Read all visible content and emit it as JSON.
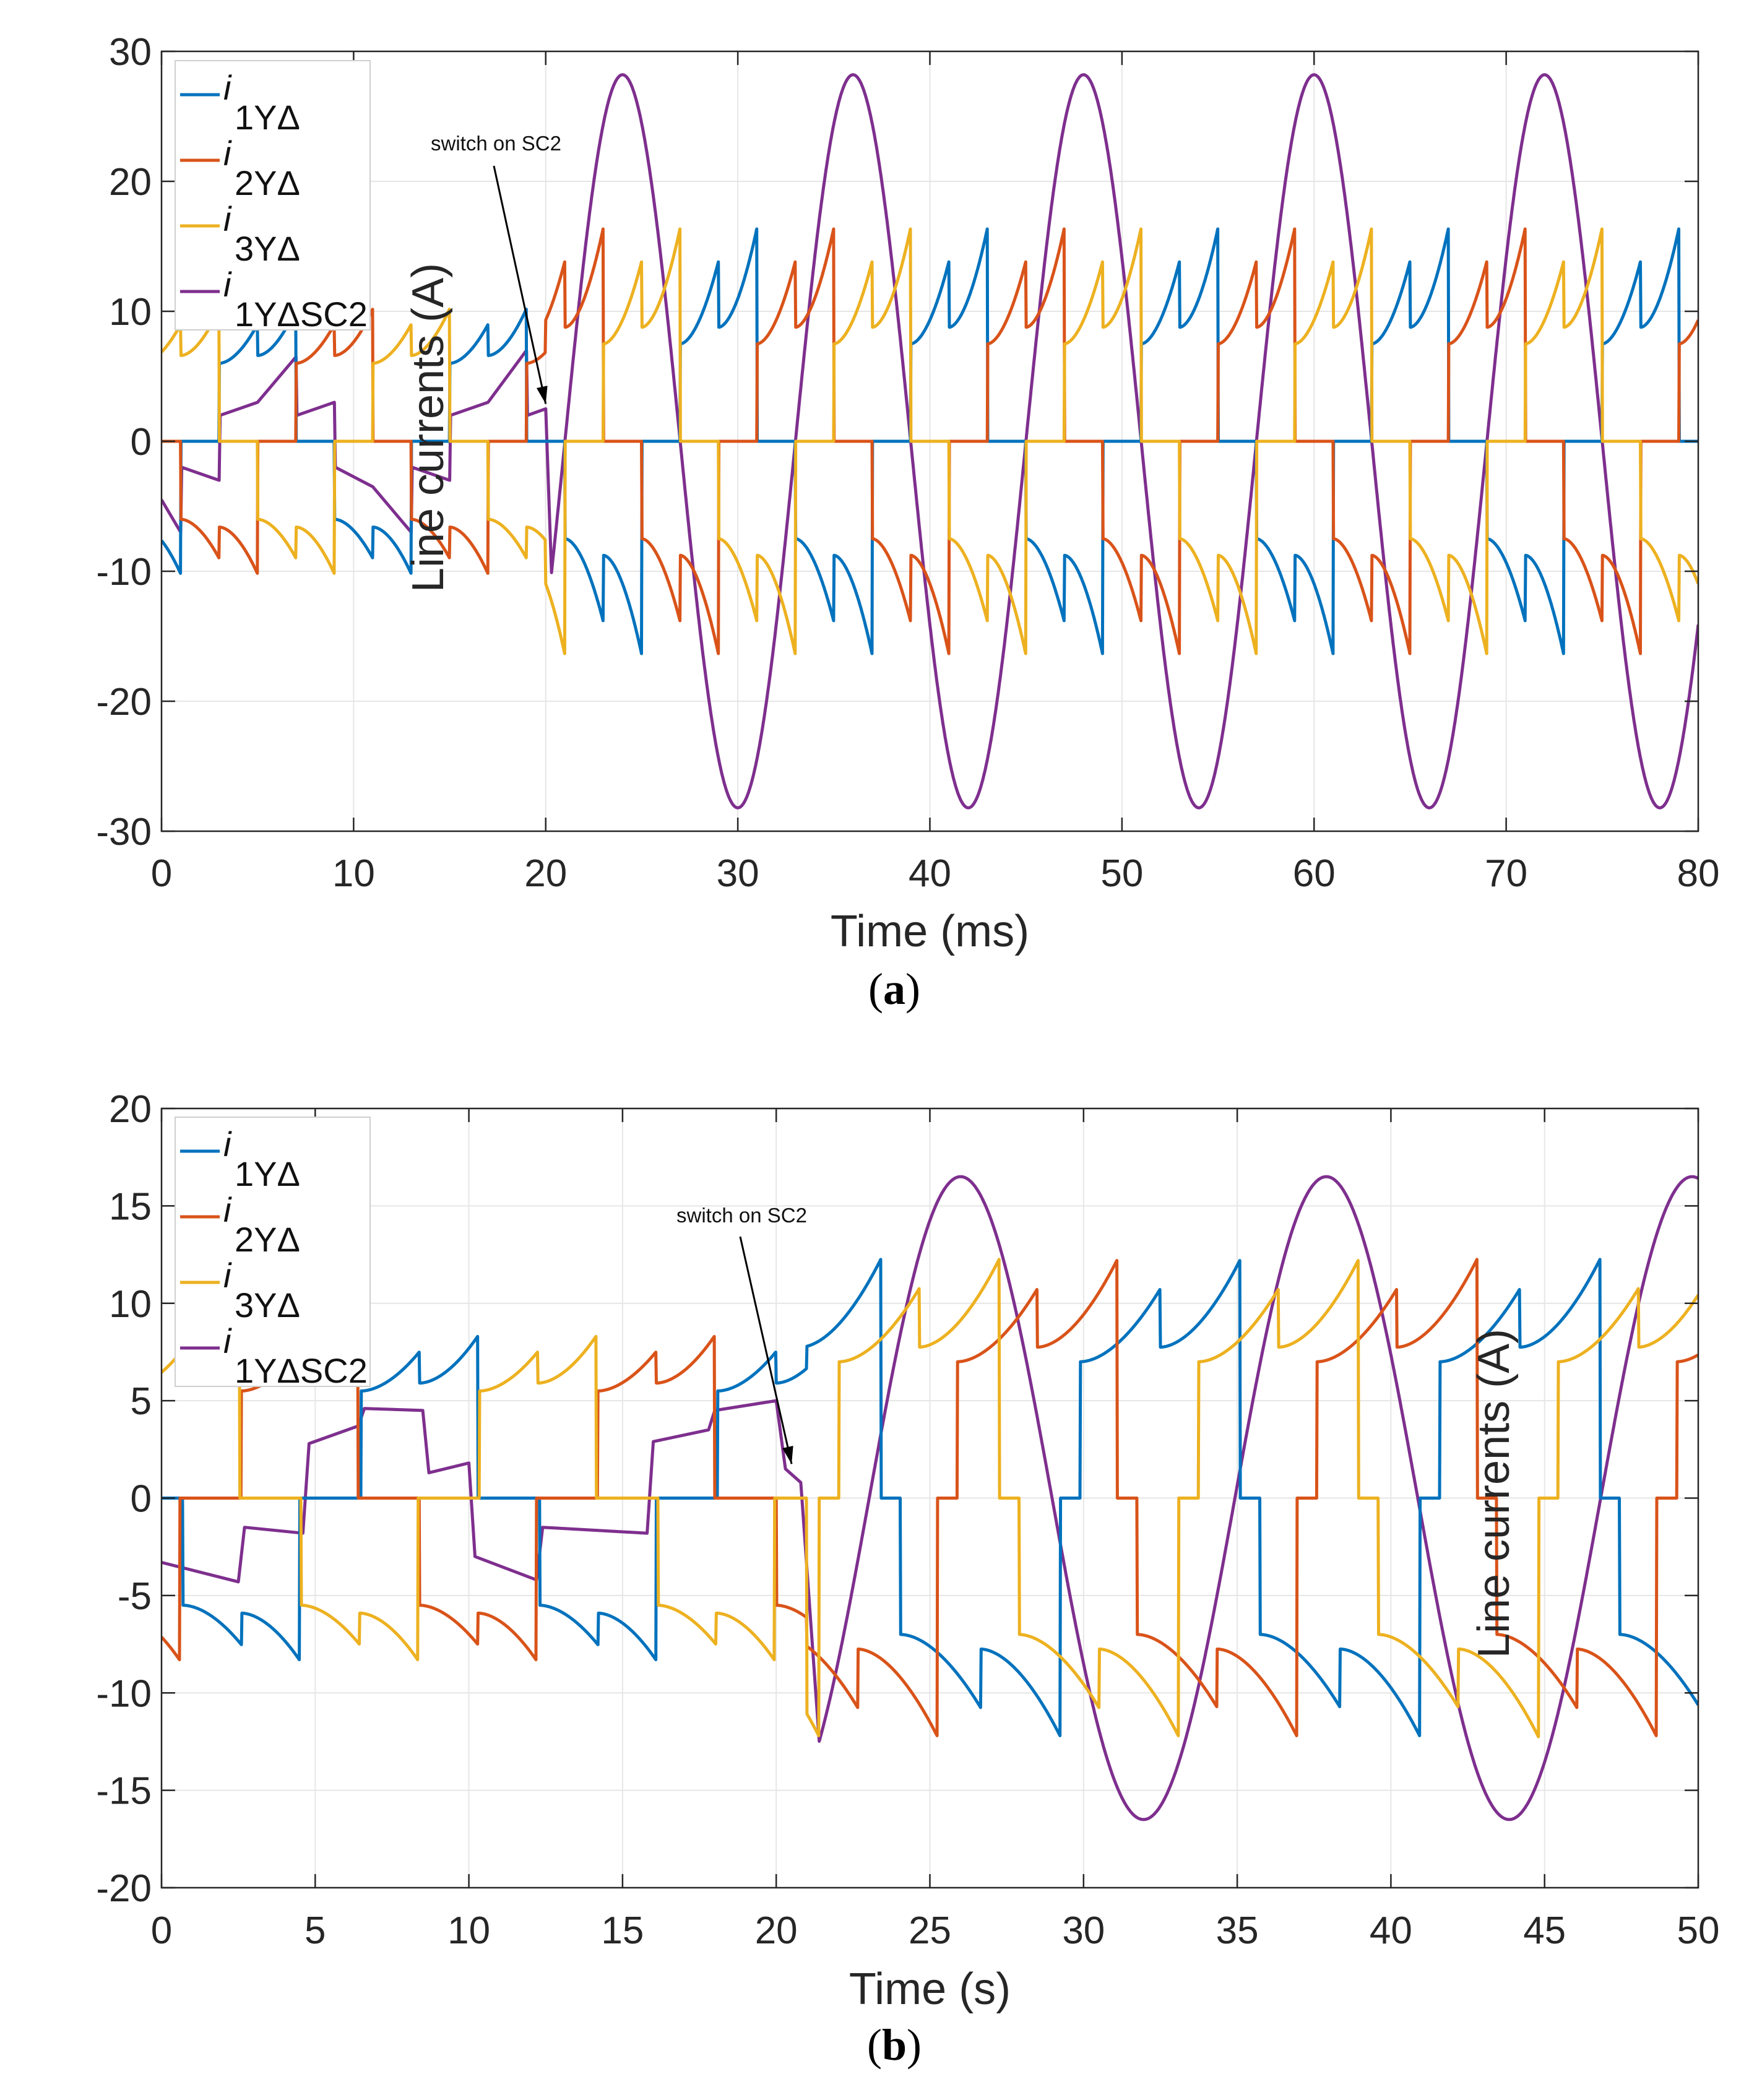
{
  "chart_data": [
    {
      "type": "line",
      "caption_letter": "a",
      "xlabel": "Time (ms)",
      "ylabel": "Line currents (A)",
      "xlim": [
        0,
        80
      ],
      "ylim": [
        -30,
        30
      ],
      "xticks": [
        0,
        10,
        20,
        30,
        40,
        50,
        60,
        70,
        80
      ],
      "yticks": [
        -30,
        -20,
        -10,
        0,
        10,
        20,
        30
      ],
      "grid": true,
      "legend_position": "top-left",
      "annotation": {
        "text": "switch on SC2",
        "points_to": [
          20,
          2.5
        ]
      },
      "switch_time": 20,
      "six_step": {
        "before": {
          "period": 12,
          "on": 4,
          "lo": 6,
          "hi": 10
        },
        "after": {
          "period": 12,
          "on": 4,
          "lo": 7.5,
          "hi": 16
        },
        "positive_start": {
          "blue": 3,
          "red": 7,
          "yellow": 11
        }
      },
      "series": [
        {
          "name": "i",
          "sub": "1YΔ",
          "color": "#0072BD",
          "phase": "blue"
        },
        {
          "name": "i",
          "sub": "2YΔ",
          "color": "#D95319",
          "phase": "red"
        },
        {
          "name": "i",
          "sub": "3YΔ",
          "color": "#EDB120",
          "phase": "yellow"
        },
        {
          "name": "i",
          "sub": "1YΔSC2",
          "color": "#7E2F8E",
          "before_points": [
            [
              0,
              -4.5
            ],
            [
              1,
              -7
            ],
            [
              1.05,
              -2
            ],
            [
              3,
              -3
            ],
            [
              3.05,
              2
            ],
            [
              5,
              3
            ],
            [
              7,
              6.5
            ],
            [
              7.05,
              2
            ],
            [
              9,
              3
            ],
            [
              9.05,
              -2
            ],
            [
              11,
              -3.5
            ],
            [
              13,
              -7
            ],
            [
              13.05,
              -2
            ],
            [
              15,
              -3
            ],
            [
              15.05,
              2
            ],
            [
              17,
              3
            ],
            [
              19,
              7
            ],
            [
              19.05,
              2
            ],
            [
              20,
              2.5
            ]
          ],
          "after_sine": {
            "amplitude": 28.2,
            "period": 12,
            "peak_at": 24,
            "start": 20.3
          }
        }
      ]
    },
    {
      "type": "line",
      "caption_letter": "b",
      "xlabel": "Time (s)",
      "ylabel": "Line currents (A)",
      "xlim": [
        0,
        50
      ],
      "ylim": [
        -20,
        20
      ],
      "xticks": [
        0,
        5,
        10,
        15,
        20,
        25,
        30,
        35,
        40,
        45,
        50
      ],
      "yticks": [
        -20,
        -15,
        -10,
        -5,
        0,
        5,
        10,
        15,
        20
      ],
      "grid": true,
      "legend_position": "top-left",
      "annotation": {
        "text": "switch on SC2",
        "points_to": [
          20.5,
          1.5
        ]
      },
      "switch_time": 21,
      "six_step": {
        "before": {
          "period": 11.6,
          "on": 3.8,
          "lo": 5.5,
          "hi": 8.2
        },
        "after": {
          "period": 11.7,
          "on": 5.2,
          "lo": 7,
          "hi": 12
        },
        "positive_start": {
          "blue": 6.5,
          "red": 14.2,
          "yellow": 10.35
        }
      },
      "series": [
        {
          "name": "i",
          "sub": "1YΔ",
          "color": "#0072BD",
          "phase": "blue"
        },
        {
          "name": "i",
          "sub": "2YΔ",
          "color": "#D95319",
          "phase": "red"
        },
        {
          "name": "i",
          "sub": "3YΔ",
          "color": "#EDB120",
          "phase": "yellow"
        },
        {
          "name": "i",
          "sub": "1YΔSC2",
          "color": "#7E2F8E",
          "before_points": [
            [
              0,
              -3.3
            ],
            [
              2.5,
              -4.3
            ],
            [
              2.7,
              -1.5
            ],
            [
              4.6,
              -1.8
            ],
            [
              4.8,
              2.8
            ],
            [
              6.4,
              3.7
            ],
            [
              6.6,
              4.6
            ],
            [
              8.5,
              4.5
            ],
            [
              8.7,
              1.3
            ],
            [
              10,
              1.8
            ],
            [
              10.2,
              -3
            ],
            [
              12.2,
              -4.2
            ],
            [
              12.4,
              -1.5
            ],
            [
              15.8,
              -1.8
            ],
            [
              16,
              2.9
            ],
            [
              17.8,
              3.5
            ],
            [
              18,
              4.5
            ],
            [
              20,
              5
            ],
            [
              20.3,
              1.5
            ],
            [
              20.8,
              0.8
            ]
          ],
          "after_sine": {
            "amplitude": 16.5,
            "period": 11.9,
            "peak_at": 26,
            "start": 21.4
          }
        }
      ]
    }
  ]
}
